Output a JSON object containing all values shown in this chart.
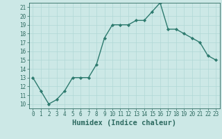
{
  "x": [
    0,
    1,
    2,
    3,
    4,
    5,
    6,
    7,
    8,
    9,
    10,
    11,
    12,
    13,
    14,
    15,
    16,
    17,
    18,
    19,
    20,
    21,
    22,
    23
  ],
  "y": [
    13,
    11.5,
    10,
    10.5,
    11.5,
    13,
    13,
    13,
    14.5,
    17.5,
    19,
    19,
    19,
    19.5,
    19.5,
    20.5,
    21.5,
    18.5,
    18.5,
    18,
    17.5,
    17,
    15.5,
    15
  ],
  "line_color": "#2d7a6e",
  "marker": "D",
  "marker_size": 2.2,
  "bg_color": "#cce8e6",
  "grid_color": "#b0d8d5",
  "xlabel": "Humidex (Indice chaleur)",
  "xlim": [
    -0.5,
    23.5
  ],
  "ylim": [
    9.5,
    21.5
  ],
  "yticks": [
    10,
    11,
    12,
    13,
    14,
    15,
    16,
    17,
    18,
    19,
    20,
    21
  ],
  "xticks": [
    0,
    1,
    2,
    3,
    4,
    5,
    6,
    7,
    8,
    9,
    10,
    11,
    12,
    13,
    14,
    15,
    16,
    17,
    18,
    19,
    20,
    21,
    22,
    23
  ],
  "tick_fontsize": 5.5,
  "xlabel_fontsize": 7.5,
  "line_width": 1.0
}
